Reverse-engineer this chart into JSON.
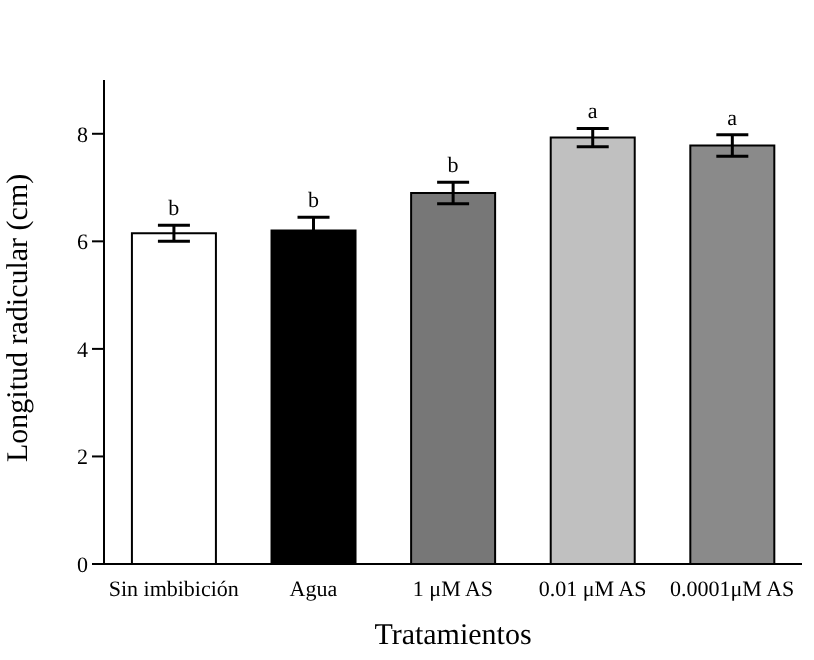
{
  "chart_data": {
    "type": "bar",
    "xlabel": "Tratamientos",
    "ylabel": "Longitud radicular (cm)",
    "categories": [
      "Sin imbibición",
      "Agua",
      "1 μM AS",
      "0.01 μM AS",
      "0.0001μM AS"
    ],
    "values": [
      6.15,
      6.2,
      6.9,
      7.93,
      7.78
    ],
    "errors": [
      0.15,
      0.25,
      0.2,
      0.17,
      0.2
    ],
    "colors": [
      "#ffffff",
      "#000000",
      "#777777",
      "#c0c0c0",
      "#8a8a8a"
    ],
    "ylim": [
      0,
      9
    ],
    "yticks": [
      0,
      2,
      4,
      6,
      8
    ],
    "grid": false,
    "legend": false,
    "annotations": [
      {
        "text": "b",
        "x": "Sin imbibición",
        "y": 6.3
      },
      {
        "text": "b",
        "x": "Agua",
        "y": 6.45
      },
      {
        "text": "b",
        "x": "1 μM AS",
        "y": 7.1
      },
      {
        "text": "a",
        "x": "0.01 μM AS",
        "y": 8.1
      },
      {
        "text": "a",
        "x": "0.0001μM AS",
        "y": 7.98
      }
    ]
  }
}
